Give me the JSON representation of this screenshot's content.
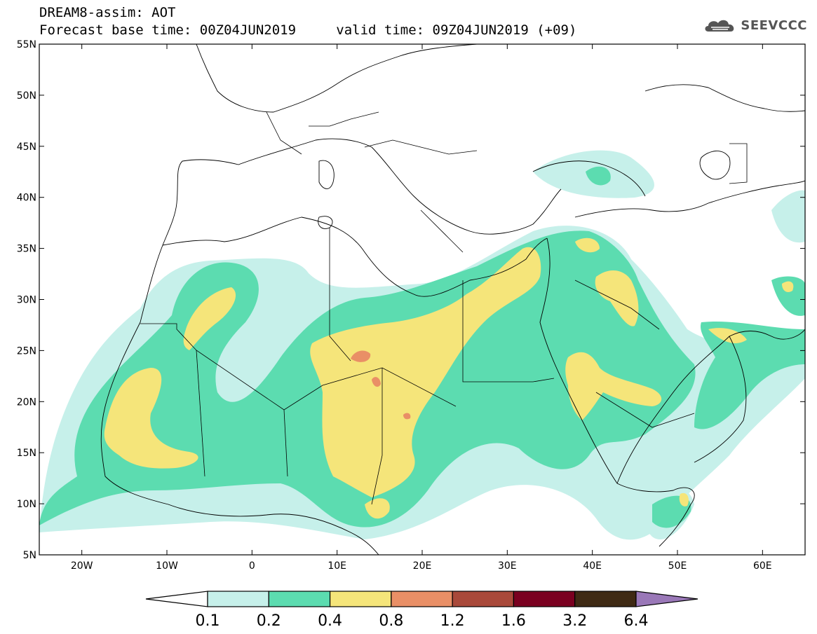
{
  "header": {
    "model_line": "DREAM8-assim: AOT",
    "forecast_base": "Forecast base time: 00Z04JUN2019",
    "valid_time": "valid time: 09Z04JUN2019 (+09)",
    "logo_text": "SEEVCCC"
  },
  "map": {
    "lon_range": [
      -25,
      65
    ],
    "lat_range": [
      5,
      55
    ],
    "lat_ticks": [
      {
        "value": 55,
        "label": "55N"
      },
      {
        "value": 50,
        "label": "50N"
      },
      {
        "value": 45,
        "label": "45N"
      },
      {
        "value": 40,
        "label": "40N"
      },
      {
        "value": 35,
        "label": "35N"
      },
      {
        "value": 30,
        "label": "30N"
      },
      {
        "value": 25,
        "label": "25N"
      },
      {
        "value": 20,
        "label": "20N"
      },
      {
        "value": 15,
        "label": "15N"
      },
      {
        "value": 10,
        "label": "10N"
      },
      {
        "value": 5,
        "label": "5N"
      }
    ],
    "lon_ticks": [
      {
        "value": -20,
        "label": "20W"
      },
      {
        "value": -10,
        "label": "10W"
      },
      {
        "value": 0,
        "label": "0"
      },
      {
        "value": 10,
        "label": "10E"
      },
      {
        "value": 20,
        "label": "20E"
      },
      {
        "value": 30,
        "label": "30E"
      },
      {
        "value": 40,
        "label": "40E"
      },
      {
        "value": 50,
        "label": "50E"
      },
      {
        "value": 60,
        "label": "60E"
      }
    ]
  },
  "colorbar": {
    "labels": [
      "0.1",
      "0.2",
      "0.4",
      "0.8",
      "1.2",
      "1.6",
      "3.2",
      "6.4"
    ],
    "colors": [
      "#ffffff",
      "#c6f0ea",
      "#5cdcb0",
      "#f5e57a",
      "#e98f66",
      "#a9493a",
      "#7a0020",
      "#3f2a14",
      "#9a78b8"
    ]
  }
}
